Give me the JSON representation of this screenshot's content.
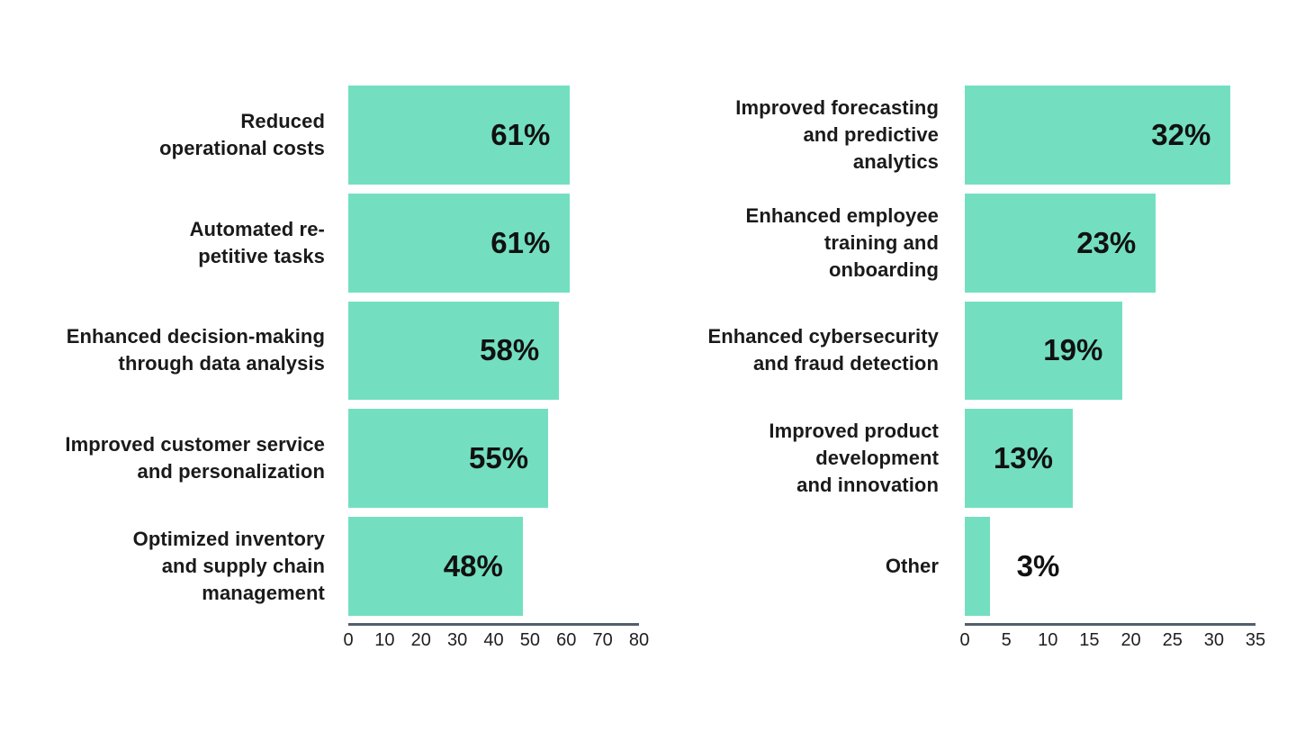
{
  "colors": {
    "bar": "#73dfc0",
    "axis_line": "#535e6c",
    "category_text": "#1a1a1a",
    "value_text": "#111111",
    "tick_text": "#1f1f1f",
    "background": "#ffffff"
  },
  "chart_data": [
    {
      "type": "bar",
      "orientation": "horizontal",
      "title": "",
      "categories": [
        "Reduced operational costs",
        "Automated repetitive tasks",
        "Enhanced decision-making through data analysis",
        "Improved customer service and personalization",
        "Optimized inventory and supply chain management"
      ],
      "category_lines": [
        [
          "Reduced",
          "operational costs"
        ],
        [
          "Automated re-",
          "petitive tasks"
        ],
        [
          "Enhanced decision-making",
          "through data analysis"
        ],
        [
          "Improved customer service",
          "and personalization"
        ],
        [
          "Optimized inventory",
          "and supply chain",
          "management"
        ]
      ],
      "values": [
        61,
        61,
        58,
        55,
        48
      ],
      "data_labels": [
        "61%",
        "61%",
        "58%",
        "55%",
        "48%"
      ],
      "xlabel": "",
      "ylabel": "",
      "xlim": [
        0,
        80
      ],
      "xticks": [
        0,
        10,
        20,
        30,
        40,
        50,
        60,
        70,
        80
      ],
      "grid": false,
      "legend": false
    },
    {
      "type": "bar",
      "orientation": "horizontal",
      "title": "",
      "categories": [
        "Improved forecasting and predictive analytics",
        "Enhanced employee training and onboarding",
        "Enhanced cybersecurity and fraud detection",
        "Improved product development and innovation",
        "Other"
      ],
      "category_lines": [
        [
          "Improved forecasting",
          "and predictive",
          "analytics"
        ],
        [
          "Enhanced employee",
          "training and",
          "onboarding"
        ],
        [
          "Enhanced cybersecurity",
          "and fraud detection"
        ],
        [
          "Improved product",
          "development",
          "and innovation"
        ],
        [
          "Other"
        ]
      ],
      "values": [
        32,
        23,
        19,
        13,
        3
      ],
      "data_labels": [
        "32%",
        "23%",
        "19%",
        "13%",
        "3%"
      ],
      "xlabel": "",
      "ylabel": "",
      "xlim": [
        0,
        35
      ],
      "xticks": [
        0,
        5,
        10,
        15,
        20,
        25,
        30,
        35
      ],
      "grid": false,
      "legend": false
    }
  ]
}
